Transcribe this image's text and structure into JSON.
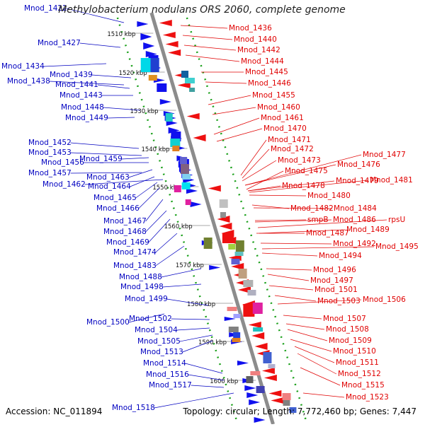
{
  "title": "Methylobacterium nodulans ORS 2060, complete genome",
  "footer": {
    "accession": "Accession: NC_011894",
    "topology": "Topology: circular; Length: 7,772,460 bp; Genes: 7,447"
  },
  "colors": {
    "left_label": "#0000c0",
    "right_label": "#e00000",
    "forward_gene": "#1010ee",
    "reverse_gene": "#ee1010",
    "axis": "#8c8c8c",
    "tick": "#1aa01a"
  },
  "scale_labels": [
    "1510 kbp",
    "1520 kbp",
    "1530 kbp",
    "1540 kbp",
    "1550 kbp",
    "1560 kbp",
    "1570 kbp",
    "1580 kbp",
    "1590 kbp",
    "1600 kbp"
  ],
  "left_labels": [
    "Mnod_1422",
    "Mnod_1427",
    "Mnod_1434",
    "Mnod_1439",
    "Mnod_1438",
    "Mnod_1441",
    "Mnod_1443",
    "Mnod_1448",
    "Mnod_1449",
    "Mnod_1452",
    "Mnod_1453",
    "Mnod_1456",
    "Mnod_1459",
    "Mnod_1457",
    "Mnod_1463",
    "Mnod_1462",
    "Mnod_1464",
    "Mnod_1465",
    "Mnod_1466",
    "Mnod_1467",
    "Mnod_1468",
    "Mnod_1469",
    "Mnod_1474",
    "Mnod_1483",
    "Mnod_1488",
    "Mnod_1498",
    "Mnod_1499",
    "Mnod_1502",
    "Mnod_1500",
    "Mnod_1504",
    "Mnod_1505",
    "Mnod_1513",
    "Mnod_1514",
    "Mnod_1516",
    "Mnod_1517",
    "Mnod_1518"
  ],
  "right_labels": [
    "Mnod_1436",
    "Mnod_1440",
    "Mnod_1442",
    "Mnod_1444",
    "Mnod_1445",
    "Mnod_1446",
    "Mnod_1455",
    "Mnod_1460",
    "Mnod_1461",
    "Mnod_1470",
    "Mnod_1471",
    "Mnod_1472",
    "Mnod_1477",
    "Mnod_1473",
    "Mnod_1476",
    "Mnod_1475",
    "Mnod_1479",
    "Mnod_1481",
    "Mnod_1478",
    "Mnod_1480",
    "Mnod_1482",
    "Mnod_1484",
    "smpB",
    "Mnod_1486",
    "rpsU",
    "Mnod_1489",
    "Mnod_1487",
    "Mnod_1492",
    "Mnod_1495",
    "Mnod_1494",
    "Mnod_1496",
    "Mnod_1497",
    "Mnod_1501",
    "Mnod_1506",
    "Mnod_1503",
    "Mnod_1507",
    "Mnod_1508",
    "Mnod_1509",
    "Mnod_1510",
    "Mnod_1511",
    "Mnod_1512",
    "Mnod_1515",
    "Mnod_1523"
  ]
}
